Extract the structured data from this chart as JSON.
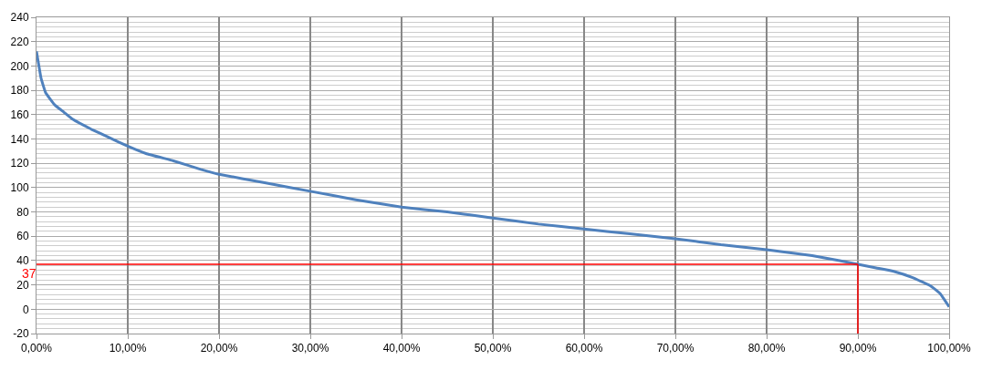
{
  "chart_data": {
    "type": "line",
    "x": [
      0,
      0.5,
      1,
      2,
      3,
      4,
      6,
      8,
      10,
      12,
      15,
      18,
      20,
      25,
      30,
      35,
      40,
      45,
      50,
      55,
      60,
      65,
      70,
      75,
      80,
      85,
      88,
      90,
      92,
      94,
      96,
      98,
      99,
      100
    ],
    "series": [
      {
        "color": "#4f81bd",
        "values": [
          212,
          190,
          178,
          168,
          162,
          156,
          148,
          141,
          134,
          128,
          122,
          115,
          111,
          104,
          97,
          90,
          84,
          80,
          75,
          70,
          66,
          62,
          58,
          53,
          49,
          44,
          40,
          37,
          34,
          31,
          26,
          19,
          13,
          2
        ]
      }
    ],
    "xlim": [
      0,
      100
    ],
    "xticks": [
      {
        "value": 0,
        "label": "0,00%"
      },
      {
        "value": 10,
        "label": "10,00%"
      },
      {
        "value": 20,
        "label": "20,00%"
      },
      {
        "value": 30,
        "label": "30,00%"
      },
      {
        "value": 40,
        "label": "40,00%"
      },
      {
        "value": 50,
        "label": "50,00%"
      },
      {
        "value": 60,
        "label": "60,00%"
      },
      {
        "value": 70,
        "label": "70,00%"
      },
      {
        "value": 80,
        "label": "80,00%"
      },
      {
        "value": 90,
        "label": "90,00%"
      },
      {
        "value": 100,
        "label": "100,00%"
      }
    ],
    "ylim": [
      -20,
      240
    ],
    "yticks": [
      -20,
      0,
      20,
      40,
      60,
      80,
      100,
      120,
      140,
      160,
      180,
      200,
      220,
      240
    ],
    "ref_lines": [
      {
        "axis": "y",
        "value": 37,
        "label": "37",
        "color": "#ff0000"
      },
      {
        "axis": "x",
        "value": 90,
        "color": "#ff0000"
      }
    ],
    "grid": true,
    "line_style": "solid"
  }
}
